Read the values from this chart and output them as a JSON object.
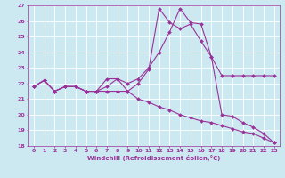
{
  "xlabel": "Windchill (Refroidissement éolien,°C)",
  "background_color": "#cce8f0",
  "line_color": "#993399",
  "grid_color": "#ffffff",
  "xlim": [
    -0.5,
    23.5
  ],
  "ylim": [
    18,
    27
  ],
  "yticks": [
    18,
    19,
    20,
    21,
    22,
    23,
    24,
    25,
    26,
    27
  ],
  "xticks": [
    0,
    1,
    2,
    3,
    4,
    5,
    6,
    7,
    8,
    9,
    10,
    11,
    12,
    13,
    14,
    15,
    16,
    17,
    18,
    19,
    20,
    21,
    22,
    23
  ],
  "series": [
    {
      "x": [
        0,
        1,
        2,
        3,
        4,
        5,
        6,
        7,
        8,
        9,
        10,
        11,
        12,
        13,
        14,
        15,
        16,
        17,
        18,
        19,
        20,
        21,
        22,
        23
      ],
      "y": [
        21.8,
        22.2,
        21.5,
        21.8,
        21.8,
        21.5,
        21.5,
        21.8,
        22.3,
        21.5,
        22.0,
        22.9,
        26.8,
        25.9,
        25.5,
        25.8,
        24.7,
        23.7,
        20.0,
        19.9,
        19.5,
        19.2,
        18.8,
        18.2
      ]
    },
    {
      "x": [
        0,
        1,
        2,
        3,
        4,
        5,
        6,
        7,
        8,
        9,
        10,
        11,
        12,
        13,
        14,
        15,
        16,
        17,
        18,
        19,
        20,
        21,
        22,
        23
      ],
      "y": [
        21.8,
        22.2,
        21.5,
        21.8,
        21.8,
        21.5,
        21.5,
        22.3,
        22.3,
        22.0,
        22.3,
        23.0,
        24.0,
        25.3,
        26.8,
        25.9,
        25.8,
        23.7,
        22.5,
        22.5,
        22.5,
        22.5,
        22.5,
        22.5
      ]
    },
    {
      "x": [
        0,
        1,
        2,
        3,
        4,
        5,
        6,
        7,
        8,
        9,
        10,
        11,
        12,
        13,
        14,
        15,
        16,
        17,
        18,
        19,
        20,
        21,
        22,
        23
      ],
      "y": [
        21.8,
        22.2,
        21.5,
        21.8,
        21.8,
        21.5,
        21.5,
        21.5,
        21.5,
        21.5,
        21.0,
        20.8,
        20.5,
        20.3,
        20.0,
        19.8,
        19.6,
        19.5,
        19.3,
        19.1,
        18.9,
        18.8,
        18.5,
        18.2
      ]
    }
  ]
}
